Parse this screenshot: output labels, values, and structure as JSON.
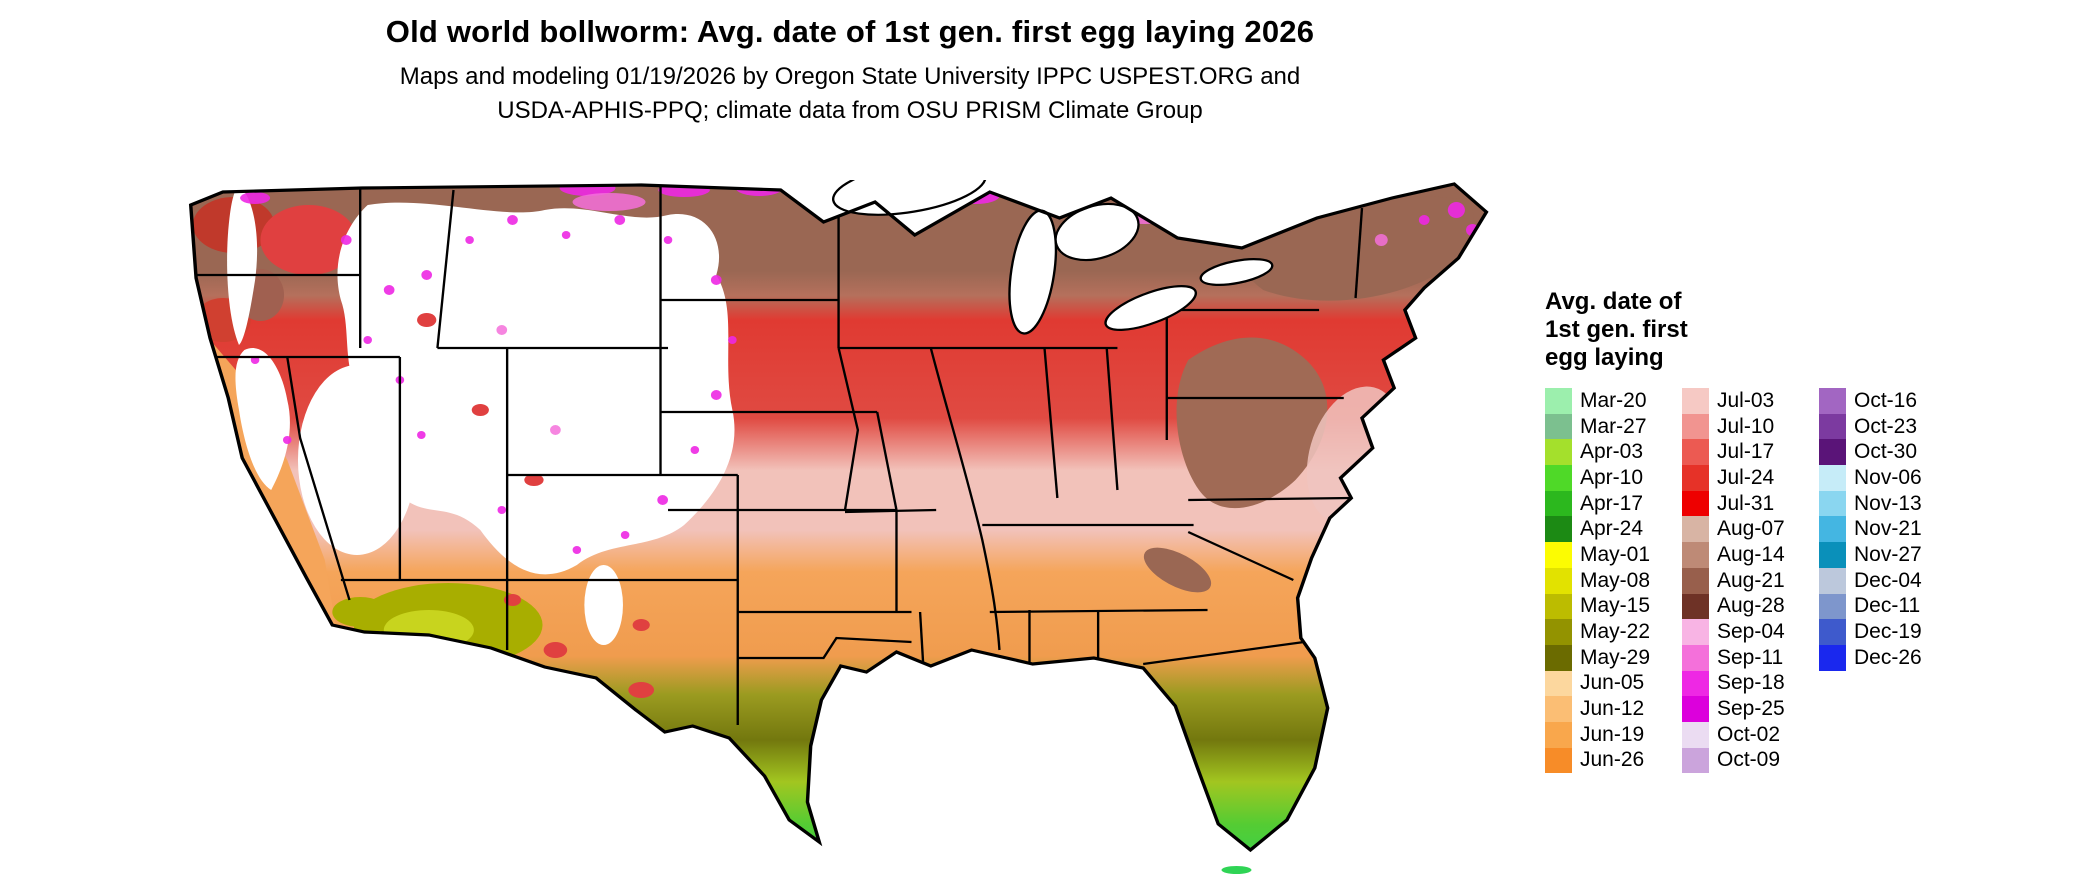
{
  "title": "Old world bollworm: Avg. date of 1st gen. first egg laying 2026",
  "subtitle": {
    "line1": "Maps and modeling 01/19/2026 by Oregon State University IPPC USPEST.ORG and",
    "line2": "USDA-APHIS-PPQ; climate data from OSU PRISM Climate Group"
  },
  "legend": {
    "title_lines": [
      "Avg. date of",
      "1st gen. first",
      "egg laying"
    ],
    "columns": [
      {
        "entries": [
          {
            "label": "Mar-20",
            "color": "#9CEFAD"
          },
          {
            "label": "Mar-27",
            "color": "#7CC08F"
          },
          {
            "label": "Apr-03",
            "color": "#A4E02C"
          },
          {
            "label": "Apr-10",
            "color": "#4FD928"
          },
          {
            "label": "Apr-17",
            "color": "#2CB81E"
          },
          {
            "label": "Apr-24",
            "color": "#1C8A14"
          },
          {
            "label": "May-01",
            "color": "#FCFC02"
          },
          {
            "label": "May-08",
            "color": "#E2E200"
          },
          {
            "label": "May-15",
            "color": "#BCBC00"
          },
          {
            "label": "May-22",
            "color": "#939300"
          },
          {
            "label": "May-29",
            "color": "#6B6B00"
          },
          {
            "label": "Jun-05",
            "color": "#FCD79E"
          },
          {
            "label": "Jun-12",
            "color": "#FBBE74"
          },
          {
            "label": "Jun-19",
            "color": "#F9A74C"
          },
          {
            "label": "Jun-26",
            "color": "#F78C28"
          }
        ]
      },
      {
        "entries": [
          {
            "label": "Jul-03",
            "color": "#F6C9C4"
          },
          {
            "label": "Jul-10",
            "color": "#F19490"
          },
          {
            "label": "Jul-17",
            "color": "#EC5A52"
          },
          {
            "label": "Jul-24",
            "color": "#E63228"
          },
          {
            "label": "Jul-31",
            "color": "#EE0000"
          },
          {
            "label": "Aug-07",
            "color": "#D8B4A4"
          },
          {
            "label": "Aug-14",
            "color": "#BE8A76"
          },
          {
            "label": "Aug-21",
            "color": "#985F4C"
          },
          {
            "label": "Aug-28",
            "color": "#6E3226"
          },
          {
            "label": "Sep-04",
            "color": "#F8B4E4"
          },
          {
            "label": "Sep-11",
            "color": "#F470DA"
          },
          {
            "label": "Sep-18",
            "color": "#EE28E4"
          },
          {
            "label": "Sep-25",
            "color": "#DC00DC"
          },
          {
            "label": "Oct-02",
            "color": "#EBDCF2"
          },
          {
            "label": "Oct-09",
            "color": "#CBA4DC"
          }
        ]
      },
      {
        "entries": [
          {
            "label": "Oct-16",
            "color": "#A266C2"
          },
          {
            "label": "Oct-23",
            "color": "#7C3AA0"
          },
          {
            "label": "Oct-30",
            "color": "#5A1478"
          },
          {
            "label": "Nov-06",
            "color": "#C6ECF8"
          },
          {
            "label": "Nov-13",
            "color": "#8AD6F0"
          },
          {
            "label": "Nov-21",
            "color": "#44B6E2"
          },
          {
            "label": "Nov-27",
            "color": "#0A90BA"
          },
          {
            "label": "Dec-04",
            "color": "#BCC8DC"
          },
          {
            "label": "Dec-11",
            "color": "#7E96CC"
          },
          {
            "label": "Dec-19",
            "color": "#3E5ACC"
          },
          {
            "label": "Dec-26",
            "color": "#1A28EE"
          }
        ]
      }
    ]
  }
}
